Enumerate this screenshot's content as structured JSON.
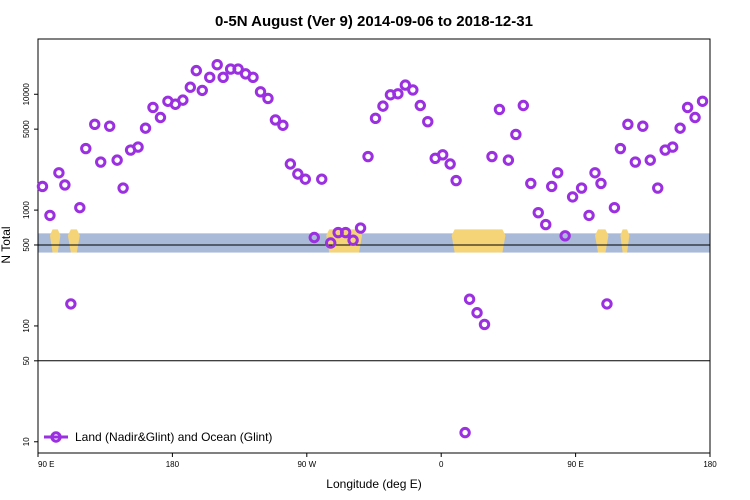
{
  "chart_data": {
    "type": "scatter",
    "title": "0-5N August (Ver 9)   2014-09-06 to 2018-12-31",
    "xlabel": "Longitude (deg E)",
    "ylabel": "N Total",
    "x_ticks": [
      {
        "value": 90,
        "label": "90 E"
      },
      {
        "value": 180,
        "label": "180"
      },
      {
        "value": 270,
        "label": "90 W"
      },
      {
        "value": 360,
        "label": "0"
      },
      {
        "value": 450,
        "label": "90 E"
      },
      {
        "value": 540,
        "label": "180"
      }
    ],
    "y_ticks": [
      {
        "value": 10,
        "label": "10"
      },
      {
        "value": 50,
        "label": "50"
      },
      {
        "value": 100,
        "label": "100"
      },
      {
        "value": 500,
        "label": "500"
      },
      {
        "value": 1000,
        "label": "1000"
      },
      {
        "value": 5000,
        "label": "5000"
      },
      {
        "value": 10000,
        "label": "10000"
      }
    ],
    "xlim": [
      90,
      540
    ],
    "ylim_log": [
      8,
      30000
    ],
    "scale": "log",
    "reference_lines": [
      500,
      50
    ],
    "grid": false,
    "legend": {
      "position": "bottom-left",
      "entries": [
        "Land (Nadir&Glint) and Ocean (Glint)"
      ]
    },
    "colors": {
      "series": "#9b30e0",
      "ocean_band": "#a9bad8",
      "land_band": "#f5d478"
    },
    "series": [
      {
        "name": "Land (Nadir&Glint) and Ocean (Glint)",
        "points": [
          [
            93,
            1600
          ],
          [
            98,
            900
          ],
          [
            104,
            2100
          ],
          [
            108,
            1650
          ],
          [
            112,
            155
          ],
          [
            118,
            1050
          ],
          [
            122,
            3400
          ],
          [
            128,
            5500
          ],
          [
            132,
            2600
          ],
          [
            138,
            5300
          ],
          [
            143,
            2700
          ],
          [
            147,
            1550
          ],
          [
            152,
            3300
          ],
          [
            157,
            3500
          ],
          [
            162,
            5100
          ],
          [
            167,
            7700
          ],
          [
            172,
            6300
          ],
          [
            177,
            8700
          ],
          [
            182,
            8200
          ],
          [
            187,
            8900
          ],
          [
            192,
            11500
          ],
          [
            196,
            16000
          ],
          [
            200,
            10800
          ],
          [
            205,
            14000
          ],
          [
            210,
            18000
          ],
          [
            214,
            14000
          ],
          [
            219,
            16500
          ],
          [
            224,
            16500
          ],
          [
            229,
            15000
          ],
          [
            234,
            14000
          ],
          [
            239,
            10500
          ],
          [
            244,
            9200
          ],
          [
            249,
            6000
          ],
          [
            254,
            5400
          ],
          [
            259,
            2500
          ],
          [
            264,
            2050
          ],
          [
            269,
            1850
          ],
          [
            275,
            580
          ],
          [
            280,
            1850
          ],
          [
            286,
            520
          ],
          [
            291,
            640
          ],
          [
            296,
            640
          ],
          [
            301,
            550
          ],
          [
            306,
            700
          ],
          [
            311,
            2900
          ],
          [
            316,
            6200
          ],
          [
            321,
            7900
          ],
          [
            326,
            9900
          ],
          [
            331,
            10100
          ],
          [
            336,
            12000
          ],
          [
            341,
            10900
          ],
          [
            346,
            8000
          ],
          [
            351,
            5800
          ],
          [
            356,
            2800
          ],
          [
            361,
            3000
          ],
          [
            366,
            2500
          ],
          [
            370,
            1800
          ],
          [
            376,
            12
          ],
          [
            379,
            170
          ],
          [
            384,
            130
          ],
          [
            389,
            103
          ],
          [
            394,
            2900
          ],
          [
            399,
            7400
          ],
          [
            405,
            2700
          ],
          [
            410,
            4500
          ],
          [
            415,
            8000
          ],
          [
            420,
            1700
          ],
          [
            425,
            950
          ],
          [
            430,
            750
          ],
          [
            434,
            1600
          ],
          [
            438,
            2100
          ],
          [
            443,
            600
          ],
          [
            448,
            1300
          ],
          [
            454,
            1550
          ],
          [
            459,
            900
          ],
          [
            463,
            2100
          ],
          [
            467,
            1700
          ],
          [
            471,
            155
          ],
          [
            476,
            1050
          ],
          [
            480,
            3400
          ],
          [
            485,
            5500
          ],
          [
            490,
            2600
          ],
          [
            495,
            5300
          ],
          [
            500,
            2700
          ],
          [
            505,
            1550
          ],
          [
            510,
            3300
          ],
          [
            515,
            3500
          ],
          [
            520,
            5100
          ],
          [
            525,
            7700
          ],
          [
            530,
            6300
          ],
          [
            535,
            8700
          ]
        ]
      }
    ],
    "surface_band": {
      "value_range": [
        430,
        630
      ],
      "land_segments": [
        [
          98,
          105
        ],
        [
          110,
          118
        ],
        [
          283,
          307
        ],
        [
          367,
          403
        ],
        [
          463,
          472
        ],
        [
          480,
          486
        ]
      ]
    }
  }
}
